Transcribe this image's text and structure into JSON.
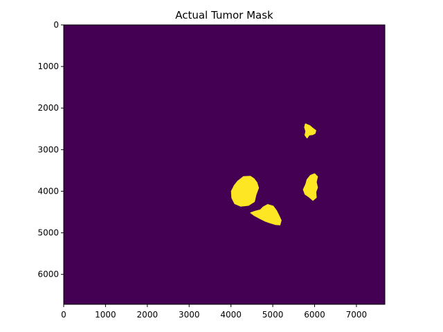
{
  "chart_data": {
    "type": "heatmap",
    "title": "Actual Tumor Mask",
    "xlabel": "",
    "ylabel": "",
    "xlim": [
      0,
      7680
    ],
    "ylim": [
      6720,
      0
    ],
    "x_ticks": [
      0,
      1000,
      2000,
      3000,
      4000,
      5000,
      6000,
      7000
    ],
    "y_ticks": [
      0,
      1000,
      2000,
      3000,
      4000,
      5000,
      6000
    ],
    "x_tick_labels": [
      "0",
      "1000",
      "2000",
      "3000",
      "4000",
      "5000",
      "6000",
      "7000"
    ],
    "y_tick_labels": [
      "0",
      "1000",
      "2000",
      "3000",
      "4000",
      "5000",
      "6000"
    ],
    "grid": false,
    "colors": {
      "background": "#440154",
      "mask": "#fde725"
    },
    "regions": [
      {
        "name": "",
        "polygon": [
          [
            5780,
            2380
          ],
          [
            5880,
            2420
          ],
          [
            5950,
            2480
          ],
          [
            6030,
            2540
          ],
          [
            6010,
            2610
          ],
          [
            5950,
            2640
          ],
          [
            5870,
            2650
          ],
          [
            5820,
            2720
          ],
          [
            5770,
            2650
          ],
          [
            5790,
            2560
          ],
          [
            5760,
            2460
          ]
        ]
      },
      {
        "name": "",
        "polygon": [
          [
            5900,
            3620
          ],
          [
            6000,
            3580
          ],
          [
            6070,
            3650
          ],
          [
            6040,
            3780
          ],
          [
            6070,
            3910
          ],
          [
            6030,
            4020
          ],
          [
            6040,
            4150
          ],
          [
            5960,
            4220
          ],
          [
            5870,
            4140
          ],
          [
            5770,
            4070
          ],
          [
            5730,
            3960
          ],
          [
            5790,
            3830
          ],
          [
            5820,
            3720
          ]
        ]
      },
      {
        "name": "",
        "polygon": [
          [
            4300,
            3650
          ],
          [
            4460,
            3640
          ],
          [
            4550,
            3700
          ],
          [
            4620,
            3790
          ],
          [
            4660,
            3920
          ],
          [
            4600,
            4080
          ],
          [
            4560,
            4250
          ],
          [
            4420,
            4340
          ],
          [
            4230,
            4360
          ],
          [
            4090,
            4300
          ],
          [
            4020,
            4160
          ],
          [
            4010,
            4000
          ],
          [
            4080,
            3860
          ],
          [
            4160,
            3760
          ]
        ]
      },
      {
        "name": "",
        "polygon": [
          [
            4880,
            4320
          ],
          [
            5010,
            4360
          ],
          [
            5090,
            4470
          ],
          [
            5150,
            4590
          ],
          [
            5200,
            4700
          ],
          [
            5170,
            4810
          ],
          [
            5060,
            4800
          ],
          [
            4930,
            4760
          ],
          [
            4820,
            4720
          ],
          [
            4700,
            4660
          ],
          [
            4550,
            4580
          ],
          [
            4470,
            4520
          ],
          [
            4580,
            4480
          ],
          [
            4700,
            4450
          ],
          [
            4770,
            4380
          ]
        ]
      }
    ]
  }
}
